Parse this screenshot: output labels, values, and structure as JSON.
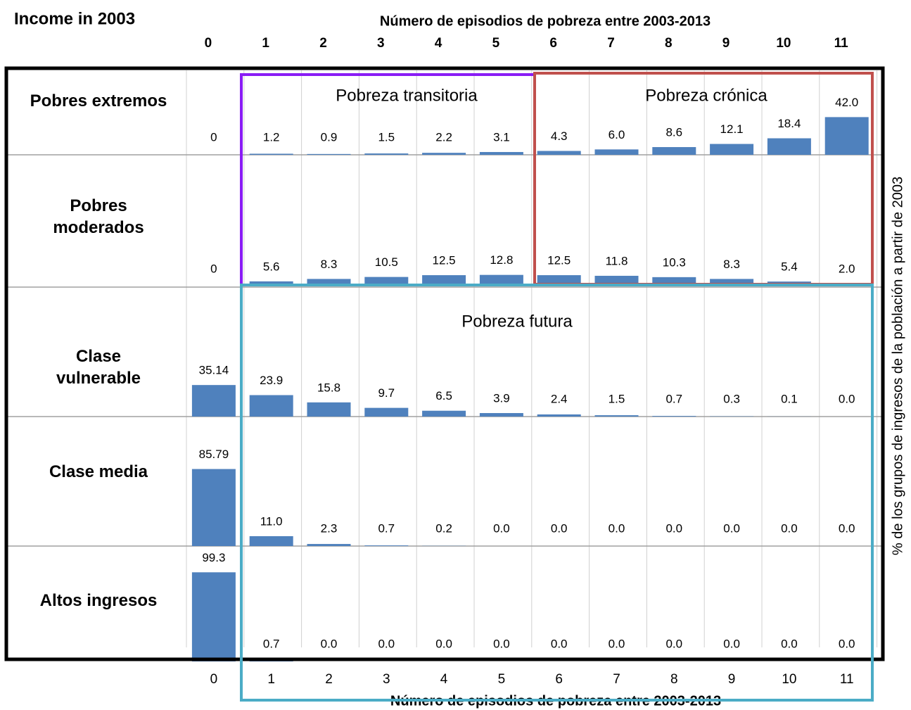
{
  "title": "Income in 2003",
  "x_axis": {
    "label": "Número de episodios de pobreza entre 2003-2013",
    "categories": [
      "0",
      "1",
      "2",
      "3",
      "4",
      "5",
      "6",
      "7",
      "8",
      "9",
      "10",
      "11"
    ]
  },
  "ylabel": "% de los grupos de ingresos de la población a partir de 2003",
  "annotations": [
    {
      "text": "Pobreza transitoria",
      "color": "#8a1cf5"
    },
    {
      "text": "Pobreza crónica",
      "color": "#c0504d"
    },
    {
      "text": "Pobreza futura",
      "color": "#4bacc6"
    }
  ],
  "chart_data": [
    {
      "type": "bar",
      "name": "Pobres extremos",
      "color": "#4f81bd",
      "ylim": [
        0,
        145
      ],
      "values": [
        0,
        1.2,
        0.9,
        1.5,
        2.2,
        3.1,
        4.3,
        6.0,
        8.6,
        12.1,
        18.4,
        42.0
      ],
      "value_labels": [
        "0",
        "1.2",
        "0.9",
        "1.5",
        "2.2",
        "3.1",
        "4.3",
        "6.0",
        "8.6",
        "12.1",
        "18.4",
        "42.0"
      ]
    },
    {
      "type": "bar",
      "name": "Pobres moderados",
      "color": "#4f81bd",
      "ylim": [
        0,
        145
      ],
      "values": [
        0,
        5.6,
        8.3,
        10.5,
        12.5,
        12.8,
        12.5,
        11.8,
        10.3,
        8.3,
        5.4,
        2.0
      ],
      "value_labels": [
        "0",
        "5.6",
        "8.3",
        "10.5",
        "12.5",
        "12.8",
        "12.5",
        "11.8",
        "10.3",
        "8.3",
        "5.4",
        "2.0"
      ]
    },
    {
      "type": "bar",
      "name": "Clase vulnerable",
      "color": "#4f81bd",
      "ylim": [
        0,
        145
      ],
      "values": [
        35.14,
        23.9,
        15.8,
        9.7,
        6.5,
        3.9,
        2.4,
        1.5,
        0.7,
        0.3,
        0.1,
        0.0
      ],
      "value_labels": [
        "35.14",
        "23.9",
        "15.8",
        "9.7",
        "6.5",
        "3.9",
        "2.4",
        "1.5",
        "0.7",
        "0.3",
        "0.1",
        "0.0"
      ]
    },
    {
      "type": "bar",
      "name": "Clase media",
      "color": "#4f81bd",
      "ylim": [
        0,
        145
      ],
      "values": [
        85.79,
        11.0,
        2.3,
        0.7,
        0.2,
        0.0,
        0.0,
        0.0,
        0.0,
        0.0,
        0.0,
        0.0
      ],
      "value_labels": [
        "85.79",
        "11.0",
        "2.3",
        "0.7",
        "0.2",
        "0.0",
        "0.0",
        "0.0",
        "0.0",
        "0.0",
        "0.0",
        "0.0"
      ]
    },
    {
      "type": "bar",
      "name": "Altos ingresos",
      "color": "#4f81bd",
      "ylim": [
        0,
        145
      ],
      "values": [
        99.3,
        0.7,
        0.0,
        0.0,
        0.0,
        0.0,
        0.0,
        0.0,
        0.0,
        0.0,
        0.0,
        0.0
      ],
      "value_labels": [
        "99.3",
        "0.7",
        "0.0",
        "0.0",
        "0.0",
        "0.0",
        "0.0",
        "0.0",
        "0.0",
        "0.0",
        "0.0",
        "0.0"
      ]
    }
  ]
}
